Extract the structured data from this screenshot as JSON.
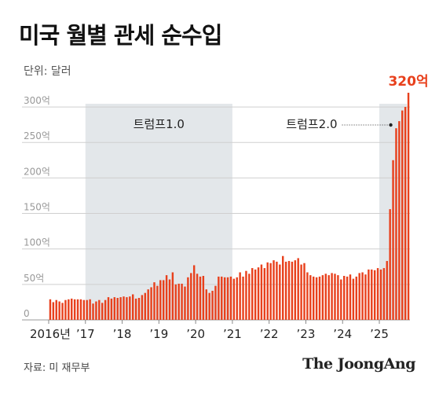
{
  "title": "미국 월별 관세 순수입",
  "unit": "단위: 달러",
  "source": "자료: 미 재무부",
  "brand": "The JoongAng",
  "chart_data": {
    "type": "bar",
    "bar_color": "#e8401c",
    "shade_color": "#e3e7ea",
    "yticks": [
      {
        "value": 0,
        "label": "0"
      },
      {
        "value": 50,
        "label": "50억"
      },
      {
        "value": 100,
        "label": "100억"
      },
      {
        "value": 150,
        "label": "150억"
      },
      {
        "value": 200,
        "label": "200억"
      },
      {
        "value": 250,
        "label": "250억"
      },
      {
        "value": 300,
        "label": "300억"
      }
    ],
    "ylim": [
      0,
      320
    ],
    "xticks": [
      {
        "index": 0,
        "label": "2016년"
      },
      {
        "index": 12,
        "label": "’17"
      },
      {
        "index": 24,
        "label": "’18"
      },
      {
        "index": 36,
        "label": "’19"
      },
      {
        "index": 48,
        "label": "’20"
      },
      {
        "index": 60,
        "label": "’21"
      },
      {
        "index": 72,
        "label": "’22"
      },
      {
        "index": 84,
        "label": "’23"
      },
      {
        "index": 96,
        "label": "’24"
      },
      {
        "index": 108,
        "label": "’25"
      }
    ],
    "shaded_periods": [
      {
        "label": "트럼프1.0",
        "start_index": 12,
        "end_index": 60
      },
      {
        "label": "트럼프2.0",
        "start_index": 108,
        "end_index": 117
      }
    ],
    "peak_label": "320억",
    "values": [
      29,
      25,
      28,
      26,
      24,
      28,
      29,
      30,
      29,
      29,
      29,
      28,
      28,
      29,
      23,
      26,
      28,
      24,
      28,
      32,
      30,
      32,
      31,
      32,
      33,
      32,
      33,
      36,
      30,
      31,
      35,
      38,
      43,
      46,
      53,
      48,
      56,
      56,
      63,
      57,
      67,
      50,
      51,
      51,
      47,
      60,
      66,
      77,
      65,
      61,
      62,
      43,
      38,
      41,
      48,
      61,
      61,
      60,
      60,
      61,
      58,
      60,
      67,
      61,
      69,
      65,
      73,
      71,
      74,
      78,
      73,
      81,
      80,
      84,
      82,
      78,
      90,
      82,
      83,
      82,
      84,
      87,
      78,
      80,
      67,
      63,
      61,
      60,
      61,
      63,
      65,
      63,
      66,
      65,
      63,
      57,
      62,
      61,
      64,
      58,
      61,
      66,
      67,
      64,
      71,
      71,
      70,
      73,
      71,
      73,
      83,
      156,
      225,
      270,
      280,
      295,
      300,
      320
    ]
  }
}
